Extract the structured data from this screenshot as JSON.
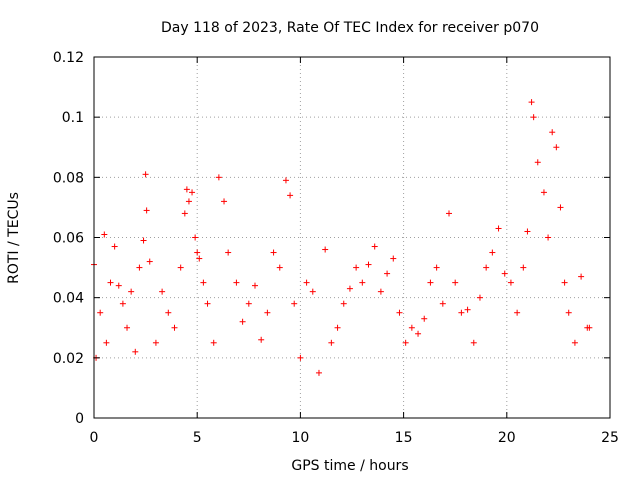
{
  "chart_data": {
    "type": "scatter",
    "title": "Day 118 of 2023, Rate Of TEC Index for receiver p070",
    "xlabel": "GPS time / hours",
    "ylabel": "ROTI / TECUs",
    "xlim": [
      0,
      25
    ],
    "ylim": [
      0,
      0.12
    ],
    "xticks": [
      0,
      5,
      10,
      15,
      20,
      25
    ],
    "yticks": [
      0,
      0.02,
      0.04,
      0.06,
      0.08,
      0.1,
      0.12
    ],
    "xtick_labels": [
      "0",
      "5",
      "10",
      "15",
      "20",
      "25"
    ],
    "ytick_labels": [
      "0",
      "0.02",
      "0.04",
      "0.06",
      "0.08",
      "0.1",
      "0.12"
    ],
    "grid": true,
    "marker": "+",
    "color": "#ff0000",
    "series": [
      {
        "x": [
          0.0,
          0.1,
          0.3,
          0.5,
          0.6,
          0.8,
          1.0,
          1.2,
          1.4,
          1.6,
          1.8,
          2.0,
          2.2,
          2.4,
          2.5,
          2.55,
          2.7,
          3.0,
          3.3,
          3.6,
          3.9,
          4.2,
          4.4,
          4.5,
          4.6,
          4.75,
          4.9,
          5.0,
          5.1,
          5.3,
          5.5,
          5.8,
          6.05,
          6.3,
          6.5,
          6.9,
          7.2,
          7.5,
          7.8,
          8.1,
          8.4,
          8.7,
          9.0,
          9.3,
          9.5,
          9.7,
          10.0,
          10.3,
          10.6,
          10.9,
          11.2,
          11.5,
          11.8,
          12.1,
          12.4,
          12.7,
          13.0,
          13.3,
          13.6,
          13.9,
          14.2,
          14.5,
          14.8,
          15.1,
          15.4,
          15.7,
          16.0,
          16.3,
          16.6,
          16.9,
          17.2,
          17.5,
          17.8,
          18.1,
          18.4,
          18.7,
          19.0,
          19.3,
          19.6,
          19.9,
          20.2,
          20.5,
          20.8,
          21.0,
          21.2,
          21.3,
          21.5,
          21.8,
          22.0,
          22.2,
          22.4,
          22.6,
          22.8,
          23.0,
          23.3,
          23.6,
          23.9,
          24.0
        ],
        "y": [
          0.051,
          0.02,
          0.035,
          0.061,
          0.025,
          0.045,
          0.057,
          0.044,
          0.038,
          0.03,
          0.042,
          0.022,
          0.05,
          0.059,
          0.081,
          0.069,
          0.052,
          0.025,
          0.042,
          0.035,
          0.03,
          0.05,
          0.068,
          0.076,
          0.072,
          0.075,
          0.06,
          0.055,
          0.053,
          0.045,
          0.038,
          0.025,
          0.08,
          0.072,
          0.055,
          0.045,
          0.032,
          0.038,
          0.044,
          0.026,
          0.035,
          0.055,
          0.05,
          0.079,
          0.074,
          0.038,
          0.02,
          0.045,
          0.042,
          0.015,
          0.056,
          0.025,
          0.03,
          0.038,
          0.043,
          0.05,
          0.045,
          0.051,
          0.057,
          0.042,
          0.048,
          0.053,
          0.035,
          0.025,
          0.03,
          0.028,
          0.033,
          0.045,
          0.05,
          0.038,
          0.068,
          0.045,
          0.035,
          0.036,
          0.025,
          0.04,
          0.05,
          0.055,
          0.063,
          0.048,
          0.045,
          0.035,
          0.05,
          0.062,
          0.105,
          0.1,
          0.085,
          0.075,
          0.06,
          0.095,
          0.09,
          0.07,
          0.045,
          0.035,
          0.025,
          0.047,
          0.03,
          0.03
        ]
      }
    ]
  }
}
